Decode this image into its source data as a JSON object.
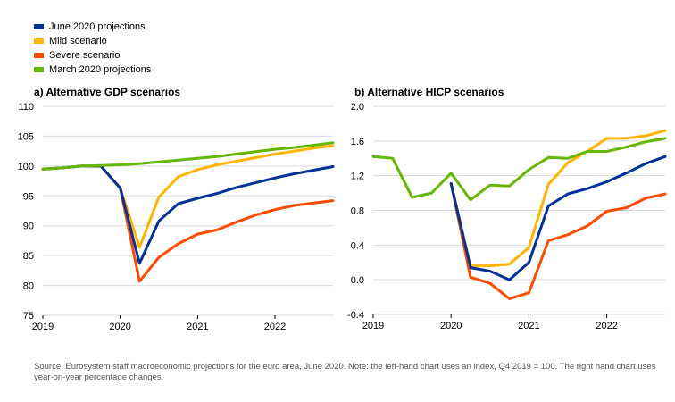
{
  "legend": [
    {
      "label": "June 2020 projections",
      "color": "#003299"
    },
    {
      "label": "Mild scenario",
      "color": "#FFB400"
    },
    {
      "label": "Severe scenario",
      "color": "#FF4B00"
    },
    {
      "label": "March 2020 projections",
      "color": "#65B800"
    }
  ],
  "source": "Source: Eurosystem staff macroeconomic projections for the euro area, June 2020. Note: the left-hand chart uses an index, Q4 2019 = 100. The right hand chart uses year-on-year percentage changes.",
  "chart_data": [
    {
      "type": "line",
      "title": "a) Alternative GDP scenarios",
      "xlabel": "",
      "ylabel": "",
      "x_ticks": [
        {
          "value": 0,
          "label": "2019"
        },
        {
          "value": 4,
          "label": "2020"
        },
        {
          "value": 8,
          "label": "2021"
        },
        {
          "value": 12,
          "label": "2022"
        }
      ],
      "xlim": [
        0,
        15
      ],
      "ylim": [
        75,
        110
      ],
      "y_ticks": [
        {
          "value": 75,
          "label": "75"
        },
        {
          "value": 80,
          "label": "80"
        },
        {
          "value": 85,
          "label": "85"
        },
        {
          "value": 90,
          "label": "90"
        },
        {
          "value": 95,
          "label": "95"
        },
        {
          "value": 100,
          "label": "100"
        },
        {
          "value": 105,
          "label": "105"
        },
        {
          "value": 110,
          "label": "110"
        }
      ],
      "series": [
        {
          "name": "Severe scenario",
          "color": "#FF4B00",
          "x": [
            0,
            1,
            2,
            3,
            4,
            5,
            6,
            7,
            8,
            9,
            10,
            11,
            12,
            13,
            14,
            15
          ],
          "values": [
            99.5,
            99.7,
            100,
            100,
            96.3,
            80.7,
            84.7,
            87,
            88.6,
            89.3,
            90.6,
            91.8,
            92.7,
            93.4,
            93.8,
            94.2
          ]
        },
        {
          "name": "Mild scenario",
          "color": "#FFB400",
          "x": [
            0,
            1,
            2,
            3,
            4,
            5,
            6,
            7,
            8,
            9,
            10,
            11,
            12,
            13,
            14,
            15
          ],
          "values": [
            99.5,
            99.7,
            100,
            100,
            96.3,
            86.4,
            94.8,
            98.2,
            99.4,
            100.2,
            100.8,
            101.4,
            102,
            102.5,
            103,
            103.4
          ]
        },
        {
          "name": "June 2020 projections",
          "color": "#003299",
          "x": [
            0,
            1,
            2,
            3,
            4,
            5,
            6,
            7,
            8,
            9,
            10,
            11,
            12,
            13,
            14,
            15
          ],
          "values": [
            99.5,
            99.7,
            100,
            100,
            96.3,
            83.7,
            90.8,
            93.7,
            94.6,
            95.4,
            96.4,
            97.2,
            98,
            98.7,
            99.3,
            99.9
          ]
        },
        {
          "name": "March 2020 projections",
          "color": "#65B800",
          "x": [
            0,
            1,
            2,
            3,
            4,
            5,
            6,
            7,
            8,
            9,
            10,
            11,
            12,
            13,
            14,
            15
          ],
          "values": [
            99.5,
            99.7,
            100,
            100.1,
            100.2,
            100.4,
            100.7,
            101,
            101.3,
            101.6,
            102,
            102.4,
            102.8,
            103.1,
            103.5,
            103.9
          ]
        }
      ]
    },
    {
      "type": "line",
      "title": "b) Alternative HICP scenarios",
      "xlabel": "",
      "ylabel": "",
      "x_ticks": [
        {
          "value": 0,
          "label": "2019"
        },
        {
          "value": 4,
          "label": "2020"
        },
        {
          "value": 8,
          "label": "2021"
        },
        {
          "value": 12,
          "label": "2022"
        }
      ],
      "xlim": [
        0,
        15
      ],
      "ylim": [
        -0.4,
        2.0
      ],
      "y_ticks": [
        {
          "value": -0.4,
          "label": "-0.4"
        },
        {
          "value": 0,
          "label": "0.0"
        },
        {
          "value": 0.4,
          "label": "0.4"
        },
        {
          "value": 0.8,
          "label": "0.8"
        },
        {
          "value": 1.2,
          "label": "1.2"
        },
        {
          "value": 1.6,
          "label": "1.6"
        },
        {
          "value": 2.0,
          "label": "2.0"
        }
      ],
      "series": [
        {
          "name": "Severe scenario",
          "color": "#FF4B00",
          "x": [
            4,
            5,
            6,
            7,
            8,
            9,
            10,
            11,
            12,
            13,
            14,
            15
          ],
          "values": [
            1.11,
            0.03,
            -0.04,
            -0.22,
            -0.15,
            0.45,
            0.52,
            0.62,
            0.79,
            0.83,
            0.94,
            0.99
          ]
        },
        {
          "name": "Mild scenario",
          "color": "#FFB400",
          "x": [
            4,
            5,
            6,
            7,
            8,
            9,
            10,
            11,
            12,
            13,
            14,
            15
          ],
          "values": [
            1.11,
            0.16,
            0.16,
            0.18,
            0.37,
            1.1,
            1.35,
            1.48,
            1.63,
            1.63,
            1.66,
            1.72
          ]
        },
        {
          "name": "June 2020 projections",
          "color": "#003299",
          "x": [
            4,
            5,
            6,
            7,
            8,
            9,
            10,
            11,
            12,
            13,
            14,
            15
          ],
          "values": [
            1.11,
            0.14,
            0.1,
            0.0,
            0.2,
            0.85,
            0.99,
            1.05,
            1.13,
            1.23,
            1.34,
            1.42
          ]
        },
        {
          "name": "March 2020 projections",
          "color": "#65B800",
          "x": [
            0,
            1,
            2,
            3,
            4,
            5,
            6,
            7,
            8,
            9,
            10,
            11,
            12,
            13,
            14,
            15
          ],
          "values": [
            1.42,
            1.4,
            0.95,
            1.0,
            1.23,
            0.92,
            1.09,
            1.08,
            1.27,
            1.41,
            1.4,
            1.48,
            1.48,
            1.53,
            1.59,
            1.63
          ]
        }
      ]
    }
  ]
}
